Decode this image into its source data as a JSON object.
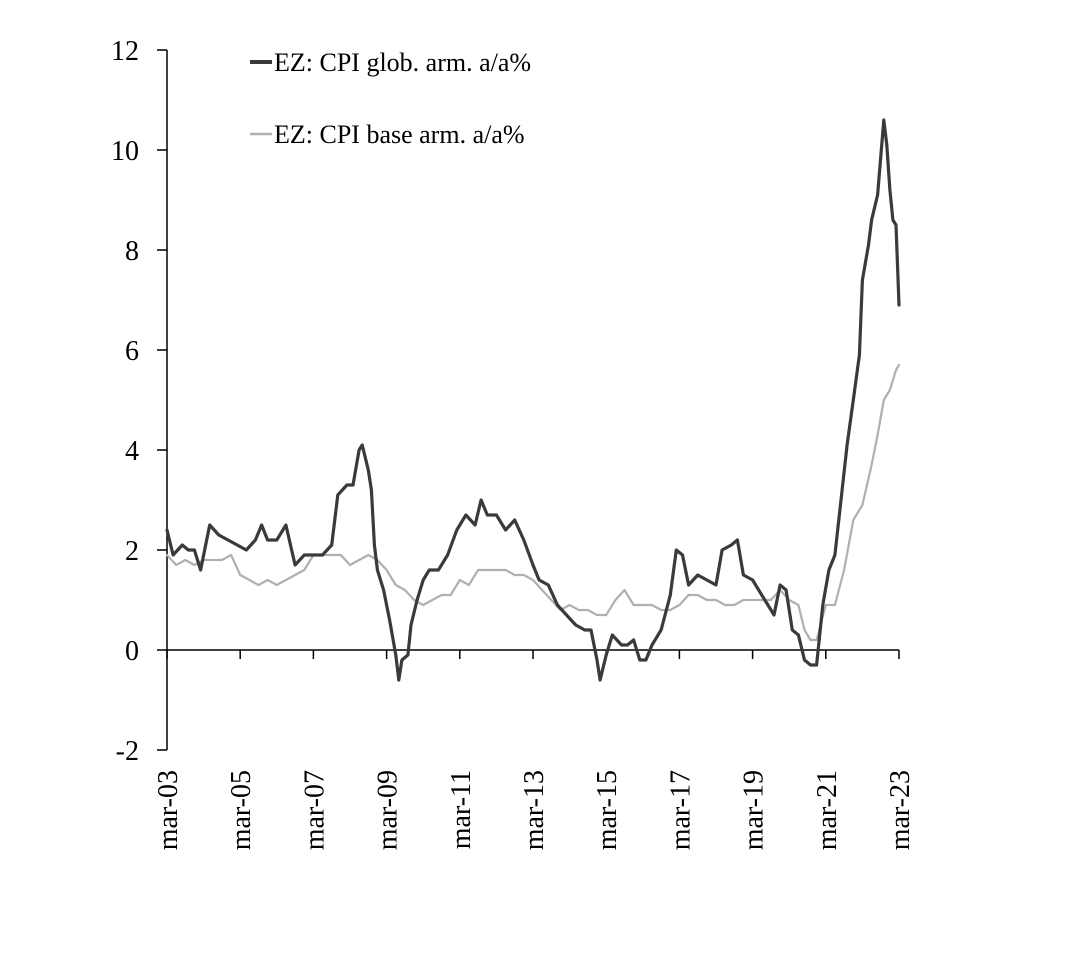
{
  "chart_data": {
    "type": "line",
    "title": "",
    "xlabel": "",
    "ylabel": "",
    "ylim": [
      -2,
      12
    ],
    "yticks": [
      -2,
      0,
      2,
      4,
      6,
      8,
      10,
      12
    ],
    "ytick_labels": [
      "-2",
      "0",
      "2",
      "4",
      "6",
      "8",
      "10",
      "12"
    ],
    "xlim": [
      "2003-03",
      "2023-03"
    ],
    "xtick_labels": [
      "mar-03",
      "mar-05",
      "mar-07",
      "mar-09",
      "mar-11",
      "mar-13",
      "mar-15",
      "mar-17",
      "mar-19",
      "mar-21",
      "mar-23"
    ],
    "xtick_dates": [
      "2003-03",
      "2005-03",
      "2007-03",
      "2009-03",
      "2011-03",
      "2013-03",
      "2015-03",
      "2017-03",
      "2019-03",
      "2021-03",
      "2023-03"
    ],
    "grid": false,
    "legend_position": "top-left",
    "series": [
      {
        "name": "EZ: CPI glob. arm. a/a%",
        "color": "#3a3a3a",
        "points": [
          [
            "2003-03",
            2.4
          ],
          [
            "2003-05",
            1.9
          ],
          [
            "2003-08",
            2.1
          ],
          [
            "2003-10",
            2.0
          ],
          [
            "2003-12",
            2.0
          ],
          [
            "2004-02",
            1.6
          ],
          [
            "2004-05",
            2.5
          ],
          [
            "2004-08",
            2.3
          ],
          [
            "2004-11",
            2.2
          ],
          [
            "2005-02",
            2.1
          ],
          [
            "2005-05",
            2.0
          ],
          [
            "2005-08",
            2.2
          ],
          [
            "2005-10",
            2.5
          ],
          [
            "2005-12",
            2.2
          ],
          [
            "2006-03",
            2.2
          ],
          [
            "2006-06",
            2.5
          ],
          [
            "2006-09",
            1.7
          ],
          [
            "2006-12",
            1.9
          ],
          [
            "2007-03",
            1.9
          ],
          [
            "2007-06",
            1.9
          ],
          [
            "2007-09",
            2.1
          ],
          [
            "2007-11",
            3.1
          ],
          [
            "2008-02",
            3.3
          ],
          [
            "2008-04",
            3.3
          ],
          [
            "2008-06",
            4.0
          ],
          [
            "2008-07",
            4.1
          ],
          [
            "2008-09",
            3.6
          ],
          [
            "2008-10",
            3.2
          ],
          [
            "2008-11",
            2.1
          ],
          [
            "2008-12",
            1.6
          ],
          [
            "2009-02",
            1.2
          ],
          [
            "2009-04",
            0.6
          ],
          [
            "2009-06",
            -0.1
          ],
          [
            "2009-07",
            -0.6
          ],
          [
            "2009-08",
            -0.2
          ],
          [
            "2009-10",
            -0.1
          ],
          [
            "2009-11",
            0.5
          ],
          [
            "2010-01",
            1.0
          ],
          [
            "2010-03",
            1.4
          ],
          [
            "2010-05",
            1.6
          ],
          [
            "2010-08",
            1.6
          ],
          [
            "2010-11",
            1.9
          ],
          [
            "2011-02",
            2.4
          ],
          [
            "2011-05",
            2.7
          ],
          [
            "2011-08",
            2.5
          ],
          [
            "2011-10",
            3.0
          ],
          [
            "2011-12",
            2.7
          ],
          [
            "2012-03",
            2.7
          ],
          [
            "2012-06",
            2.4
          ],
          [
            "2012-09",
            2.6
          ],
          [
            "2012-12",
            2.2
          ],
          [
            "2013-03",
            1.7
          ],
          [
            "2013-05",
            1.4
          ],
          [
            "2013-08",
            1.3
          ],
          [
            "2013-11",
            0.9
          ],
          [
            "2014-02",
            0.7
          ],
          [
            "2014-05",
            0.5
          ],
          [
            "2014-08",
            0.4
          ],
          [
            "2014-10",
            0.4
          ],
          [
            "2014-12",
            -0.2
          ],
          [
            "2015-01",
            -0.6
          ],
          [
            "2015-03",
            -0.1
          ],
          [
            "2015-05",
            0.3
          ],
          [
            "2015-08",
            0.1
          ],
          [
            "2015-10",
            0.1
          ],
          [
            "2015-12",
            0.2
          ],
          [
            "2016-02",
            -0.2
          ],
          [
            "2016-04",
            -0.2
          ],
          [
            "2016-06",
            0.1
          ],
          [
            "2016-09",
            0.4
          ],
          [
            "2016-12",
            1.1
          ],
          [
            "2017-02",
            2.0
          ],
          [
            "2017-04",
            1.9
          ],
          [
            "2017-06",
            1.3
          ],
          [
            "2017-09",
            1.5
          ],
          [
            "2017-12",
            1.4
          ],
          [
            "2018-03",
            1.3
          ],
          [
            "2018-05",
            2.0
          ],
          [
            "2018-08",
            2.1
          ],
          [
            "2018-10",
            2.2
          ],
          [
            "2018-12",
            1.5
          ],
          [
            "2019-03",
            1.4
          ],
          [
            "2019-05",
            1.2
          ],
          [
            "2019-08",
            0.9
          ],
          [
            "2019-10",
            0.7
          ],
          [
            "2019-12",
            1.3
          ],
          [
            "2020-02",
            1.2
          ],
          [
            "2020-04",
            0.4
          ],
          [
            "2020-06",
            0.3
          ],
          [
            "2020-08",
            -0.2
          ],
          [
            "2020-10",
            -0.3
          ],
          [
            "2020-12",
            -0.3
          ],
          [
            "2021-02",
            0.9
          ],
          [
            "2021-04",
            1.6
          ],
          [
            "2021-06",
            1.9
          ],
          [
            "2021-08",
            3.0
          ],
          [
            "2021-10",
            4.1
          ],
          [
            "2021-12",
            5.0
          ],
          [
            "2022-02",
            5.9
          ],
          [
            "2022-03",
            7.4
          ],
          [
            "2022-05",
            8.1
          ],
          [
            "2022-06",
            8.6
          ],
          [
            "2022-08",
            9.1
          ],
          [
            "2022-10",
            10.6
          ],
          [
            "2022-11",
            10.1
          ],
          [
            "2022-12",
            9.2
          ],
          [
            "2023-01",
            8.6
          ],
          [
            "2023-02",
            8.5
          ],
          [
            "2023-03",
            6.9
          ]
        ]
      },
      {
        "name": "EZ: CPI base arm. a/a%",
        "color": "#b0b0b0",
        "points": [
          [
            "2003-03",
            1.9
          ],
          [
            "2003-06",
            1.7
          ],
          [
            "2003-09",
            1.8
          ],
          [
            "2003-12",
            1.7
          ],
          [
            "2004-03",
            1.8
          ],
          [
            "2004-06",
            1.8
          ],
          [
            "2004-09",
            1.8
          ],
          [
            "2004-12",
            1.9
          ],
          [
            "2005-03",
            1.5
          ],
          [
            "2005-06",
            1.4
          ],
          [
            "2005-09",
            1.3
          ],
          [
            "2005-12",
            1.4
          ],
          [
            "2006-03",
            1.3
          ],
          [
            "2006-06",
            1.4
          ],
          [
            "2006-09",
            1.5
          ],
          [
            "2006-12",
            1.6
          ],
          [
            "2007-03",
            1.9
          ],
          [
            "2007-06",
            1.9
          ],
          [
            "2007-09",
            1.9
          ],
          [
            "2007-12",
            1.9
          ],
          [
            "2008-03",
            1.7
          ],
          [
            "2008-06",
            1.8
          ],
          [
            "2008-09",
            1.9
          ],
          [
            "2008-12",
            1.8
          ],
          [
            "2009-03",
            1.6
          ],
          [
            "2009-06",
            1.3
          ],
          [
            "2009-09",
            1.2
          ],
          [
            "2009-12",
            1.0
          ],
          [
            "2010-03",
            0.9
          ],
          [
            "2010-06",
            1.0
          ],
          [
            "2010-09",
            1.1
          ],
          [
            "2010-12",
            1.1
          ],
          [
            "2011-03",
            1.4
          ],
          [
            "2011-06",
            1.3
          ],
          [
            "2011-09",
            1.6
          ],
          [
            "2011-12",
            1.6
          ],
          [
            "2012-03",
            1.6
          ],
          [
            "2012-06",
            1.6
          ],
          [
            "2012-09",
            1.5
          ],
          [
            "2012-12",
            1.5
          ],
          [
            "2013-03",
            1.4
          ],
          [
            "2013-06",
            1.2
          ],
          [
            "2013-09",
            1.0
          ],
          [
            "2013-12",
            0.8
          ],
          [
            "2014-03",
            0.9
          ],
          [
            "2014-06",
            0.8
          ],
          [
            "2014-09",
            0.8
          ],
          [
            "2014-12",
            0.7
          ],
          [
            "2015-03",
            0.7
          ],
          [
            "2015-06",
            1.0
          ],
          [
            "2015-09",
            1.2
          ],
          [
            "2015-12",
            0.9
          ],
          [
            "2016-03",
            0.9
          ],
          [
            "2016-06",
            0.9
          ],
          [
            "2016-09",
            0.8
          ],
          [
            "2016-12",
            0.8
          ],
          [
            "2017-03",
            0.9
          ],
          [
            "2017-06",
            1.1
          ],
          [
            "2017-09",
            1.1
          ],
          [
            "2017-12",
            1.0
          ],
          [
            "2018-03",
            1.0
          ],
          [
            "2018-06",
            0.9
          ],
          [
            "2018-09",
            0.9
          ],
          [
            "2018-12",
            1.0
          ],
          [
            "2019-03",
            1.0
          ],
          [
            "2019-06",
            1.0
          ],
          [
            "2019-09",
            1.0
          ],
          [
            "2019-12",
            1.2
          ],
          [
            "2020-03",
            1.0
          ],
          [
            "2020-06",
            0.9
          ],
          [
            "2020-08",
            0.4
          ],
          [
            "2020-10",
            0.2
          ],
          [
            "2020-12",
            0.2
          ],
          [
            "2021-03",
            0.9
          ],
          [
            "2021-06",
            0.9
          ],
          [
            "2021-09",
            1.6
          ],
          [
            "2021-12",
            2.6
          ],
          [
            "2022-03",
            2.9
          ],
          [
            "2022-06",
            3.7
          ],
          [
            "2022-08",
            4.3
          ],
          [
            "2022-10",
            5.0
          ],
          [
            "2022-12",
            5.2
          ],
          [
            "2023-02",
            5.6
          ],
          [
            "2023-03",
            5.7
          ]
        ]
      }
    ]
  }
}
